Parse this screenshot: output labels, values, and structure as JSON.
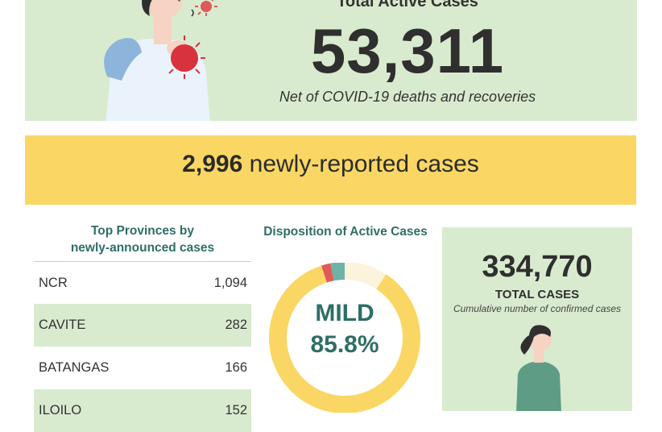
{
  "active_cases": {
    "title": "Total Active Cases",
    "value": "53,311",
    "note": "Net of COVID-19 deaths and recoveries"
  },
  "new_cases": {
    "value": "2,996",
    "label": "newly-reported cases"
  },
  "top_provinces": {
    "title_line1": "Top Provinces by",
    "title_line2": "newly-announced cases",
    "rows": [
      {
        "name": "NCR",
        "value": "1,094"
      },
      {
        "name": "CAVITE",
        "value": "282"
      },
      {
        "name": "BATANGAS",
        "value": "166"
      },
      {
        "name": "ILOILO",
        "value": "152"
      }
    ]
  },
  "disposition": {
    "title": "Disposition of Active Cases",
    "highlight_category": "MILD",
    "highlight_percent": "85.8%"
  },
  "chart_data": {
    "type": "pie",
    "title": "Disposition of Active Cases",
    "slices": [
      {
        "name": "MILD",
        "value": 85.8,
        "color": "#fad764"
      },
      {
        "name": "",
        "value": 9.2,
        "color": "#fcf3dc"
      },
      {
        "name": "",
        "value": 3.0,
        "color": "#6fb3a6"
      },
      {
        "name": "",
        "value": 2.0,
        "color": "#e05a5a"
      }
    ]
  },
  "total_cases": {
    "value": "334,770",
    "label": "TOTAL CASES",
    "note": "Cumulative number of confirmed cases"
  },
  "colors": {
    "light_green": "#d9ebcf",
    "yellow": "#fad764",
    "teal_text": "#2e6e67"
  },
  "icons": [
    "coughing-woman-illustration",
    "virus-icon",
    "standing-woman-illustration"
  ]
}
